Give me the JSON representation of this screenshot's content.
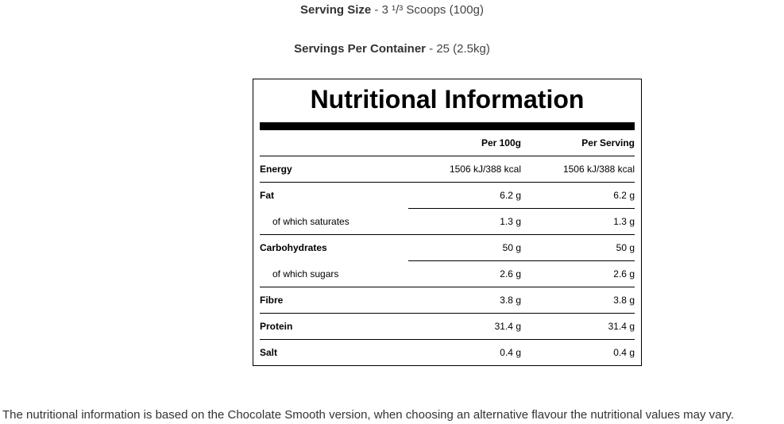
{
  "serving_size": {
    "label": "Serving Size",
    "value": " - 3 ¹/³ Scoops (100g)"
  },
  "servings_per_container": {
    "label": "Servings Per Container",
    "value": " - 25 (2.5kg)"
  },
  "table": {
    "title": "Nutritional Information",
    "headers": [
      "",
      "Per 100g",
      "Per Serving"
    ],
    "rows": [
      {
        "name": "Energy",
        "per100": "1506 kJ/388 kcal",
        "serving": "1506 kJ/388 kcal"
      },
      {
        "name": "Fat",
        "per100": "6.2 g",
        "serving": "6.2 g"
      },
      {
        "name": "of which saturates",
        "per100": "1.3 g",
        "serving": "1.3 g"
      },
      {
        "name": "Carbohydrates",
        "per100": "50 g",
        "serving": "50 g"
      },
      {
        "name": "of which sugars",
        "per100": "2.6 g",
        "serving": "2.6 g"
      },
      {
        "name": "Fibre",
        "per100": "3.8 g",
        "serving": "3.8 g"
      },
      {
        "name": "Protein",
        "per100": "31.4 g",
        "serving": "31.4 g"
      },
      {
        "name": "Salt",
        "per100": "0.4 g",
        "serving": "0.4 g"
      }
    ]
  },
  "footnote": "The nutritional information is based on the Chocolate Smooth version, when choosing an alternative flavour the nutritional values may vary."
}
